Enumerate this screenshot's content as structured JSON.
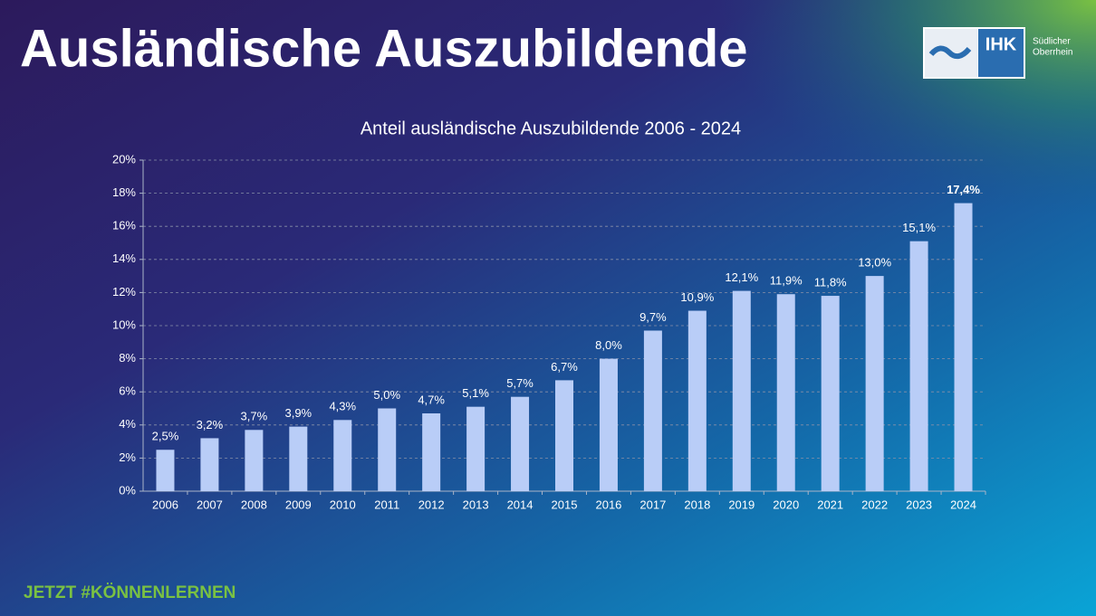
{
  "slide": {
    "title": "Ausländische Auszubildende",
    "footer": "JETZT #KÖNNENLERNEN",
    "logo": {
      "abbr": "IHK",
      "line1": "Südlicher",
      "line2": "Oberrhein"
    }
  },
  "chart_data": {
    "type": "bar",
    "title": "Anteil ausländische Auszubildende 2006 - 2024",
    "categories": [
      "2006",
      "2007",
      "2008",
      "2009",
      "2010",
      "2011",
      "2012",
      "2013",
      "2014",
      "2015",
      "2016",
      "2017",
      "2018",
      "2019",
      "2020",
      "2021",
      "2022",
      "2023",
      "2024"
    ],
    "values": [
      2.5,
      3.2,
      3.7,
      3.9,
      4.3,
      5.0,
      4.7,
      5.1,
      5.7,
      6.7,
      8.0,
      9.7,
      10.9,
      12.1,
      11.9,
      11.8,
      13.0,
      15.1,
      17.4
    ],
    "value_labels": [
      "2,5%",
      "3,2%",
      "3,7%",
      "3,9%",
      "4,3%",
      "5,0%",
      "4,7%",
      "5,1%",
      "5,7%",
      "6,7%",
      "8,0%",
      "9,7%",
      "10,9%",
      "12,1%",
      "11,9%",
      "11,8%",
      "13,0%",
      "15,1%",
      "17,4%"
    ],
    "color": "#b9cdf7",
    "ylim": [
      0,
      20
    ],
    "yticks": [
      {
        "value": 0,
        "label": "0%"
      },
      {
        "value": 2,
        "label": "2%"
      },
      {
        "value": 4,
        "label": "4%"
      },
      {
        "value": 6,
        "label": "6%"
      },
      {
        "value": 8,
        "label": "8%"
      },
      {
        "value": 10,
        "label": "10%"
      },
      {
        "value": 12,
        "label": "12%"
      },
      {
        "value": 14,
        "label": "14%"
      },
      {
        "value": 16,
        "label": "16%"
      },
      {
        "value": 18,
        "label": "18%"
      },
      {
        "value": 20,
        "label": "20%"
      }
    ],
    "grid": true
  }
}
